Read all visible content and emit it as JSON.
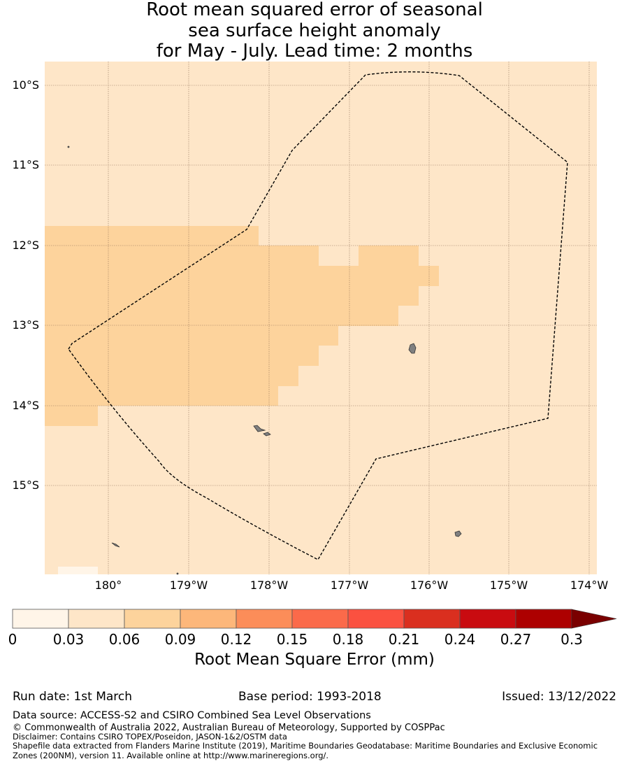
{
  "title": {
    "line1": "Root mean squared error of seasonal",
    "line2": "sea surface height anomaly",
    "line3": "for May - July. Lead time: 2 months"
  },
  "map": {
    "lat_range": [
      -16.05,
      -9.72
    ],
    "lon_range": [
      -180.8,
      -173.9
    ],
    "lat_ticks": [
      {
        "value": -10,
        "label": "10°S"
      },
      {
        "value": -11,
        "label": "11°S"
      },
      {
        "value": -12,
        "label": "12°S"
      },
      {
        "value": -13,
        "label": "13°S"
      },
      {
        "value": -14,
        "label": "14°S"
      },
      {
        "value": -15,
        "label": "15°S"
      }
    ],
    "lon_ticks": [
      {
        "value": -180,
        "label": "180°"
      },
      {
        "value": -179,
        "label": "179°W"
      },
      {
        "value": -178,
        "label": "178°W"
      },
      {
        "value": -177,
        "label": "177°W"
      },
      {
        "value": -176,
        "label": "176°W"
      },
      {
        "value": -175,
        "label": "175°W"
      },
      {
        "value": -174,
        "label": "174°W"
      }
    ],
    "background_value_color": "#fee6c8",
    "higher_value_color": "#fdd39c",
    "grid_color": "#8b6d55",
    "land_color": "#808080",
    "boundary_style": "dashed black line (Exclusive Economic Zone)"
  },
  "colorbar": {
    "label": "Root Mean Square Error (mm)",
    "ticks": [
      "0",
      "0.03",
      "0.06",
      "0.09",
      "0.12",
      "0.15",
      "0.18",
      "0.21",
      "0.24",
      "0.27",
      "0.3"
    ],
    "colors": [
      "#fff5e8",
      "#fee6c8",
      "#fdd39c",
      "#fdb77a",
      "#fc8d59",
      "#fb6a4a",
      "#fb5140",
      "#da2f1f",
      "#c90b10",
      "#ad0000"
    ],
    "extend_color": "#7a0000"
  },
  "footer": {
    "run_date": "Run date: 1st March",
    "base_period": "Base period: 1993-2018",
    "issued": "Issued: 13/12/2022",
    "data_source": "Data source: ACCESS-S2 and CSIRO Combined Sea Level Observations",
    "copyright": "© Commonwealth of Australia 2022, Australian Bureau of Meteorology, Supported by COSPPac",
    "disclaimer": "Disclaimer: Contains CSIRO TOPEX/Poseidon, JASON-1&2/OSTM data",
    "shapefile_line1": "Shapefile data extracted from Flanders Marine Institute (2019), Maritime Boundaries Geodatabase: Maritime Boundaries and Exclusive Economic",
    "shapefile_line2": "Zones (200NM), version 11. Available online at http://www.marineregions.org/."
  }
}
